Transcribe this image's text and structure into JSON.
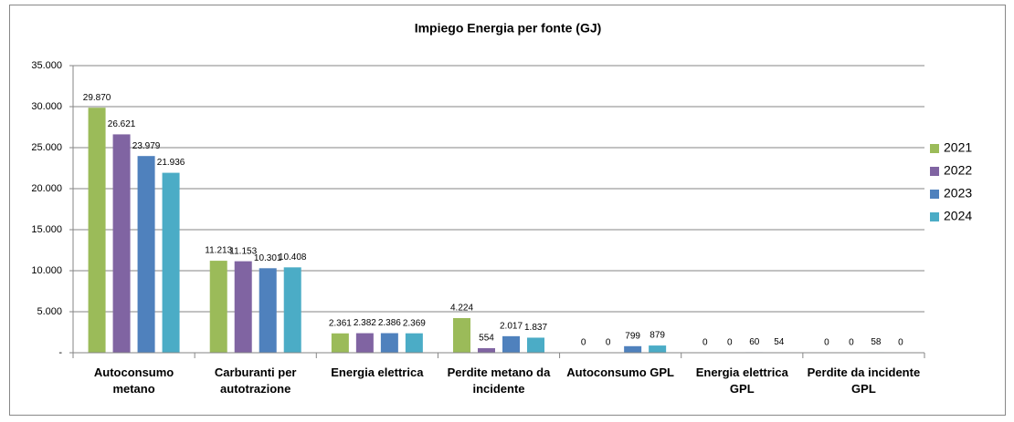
{
  "chart_data": {
    "type": "bar",
    "title": "Impiego Energia per fonte   (GJ)",
    "categories": [
      "Autoconsumo metano",
      "Carburanti per autotrazione",
      "Energia elettrica",
      "Perdite metano da incidente",
      "Autoconsumo GPL",
      "Energia elettrica GPL",
      "Perdite da incidente GPL"
    ],
    "series": [
      {
        "name": "2021",
        "color": "#9bbb59",
        "values": [
          29870,
          11213,
          2361,
          4224,
          0,
          0,
          0
        ],
        "value_labels": [
          "29.870",
          "11.213",
          "2.361",
          "4.224",
          "0",
          "0",
          "0"
        ]
      },
      {
        "name": "2022",
        "color": "#8064a2",
        "values": [
          26621,
          11153,
          2382,
          554,
          0,
          0,
          0
        ],
        "value_labels": [
          "26.621",
          "11.153",
          "2.382",
          "554",
          "0",
          "0",
          "0"
        ]
      },
      {
        "name": "2023",
        "color": "#4f81bd",
        "values": [
          23979,
          10301,
          2386,
          2017,
          799,
          60,
          58
        ],
        "value_labels": [
          "23.979",
          "10.301",
          "2.386",
          "2.017",
          "799",
          "60",
          "58"
        ]
      },
      {
        "name": "2024",
        "color": "#4bacc6",
        "values": [
          21936,
          10408,
          2369,
          1837,
          879,
          54,
          0
        ],
        "value_labels": [
          "21.936",
          "10.408",
          "2.369",
          "1.837",
          "879",
          "54",
          "0"
        ]
      }
    ],
    "ylim": [
      0,
      35000
    ],
    "yticks": [
      {
        "value": 0,
        "label": "-"
      },
      {
        "value": 5000,
        "label": "5.000"
      },
      {
        "value": 10000,
        "label": "10.000"
      },
      {
        "value": 15000,
        "label": "15.000"
      },
      {
        "value": 20000,
        "label": "20.000"
      },
      {
        "value": 25000,
        "label": "25.000"
      },
      {
        "value": 30000,
        "label": "30.000"
      },
      {
        "value": 35000,
        "label": "35.000"
      }
    ],
    "grid": true,
    "legend": "right"
  }
}
